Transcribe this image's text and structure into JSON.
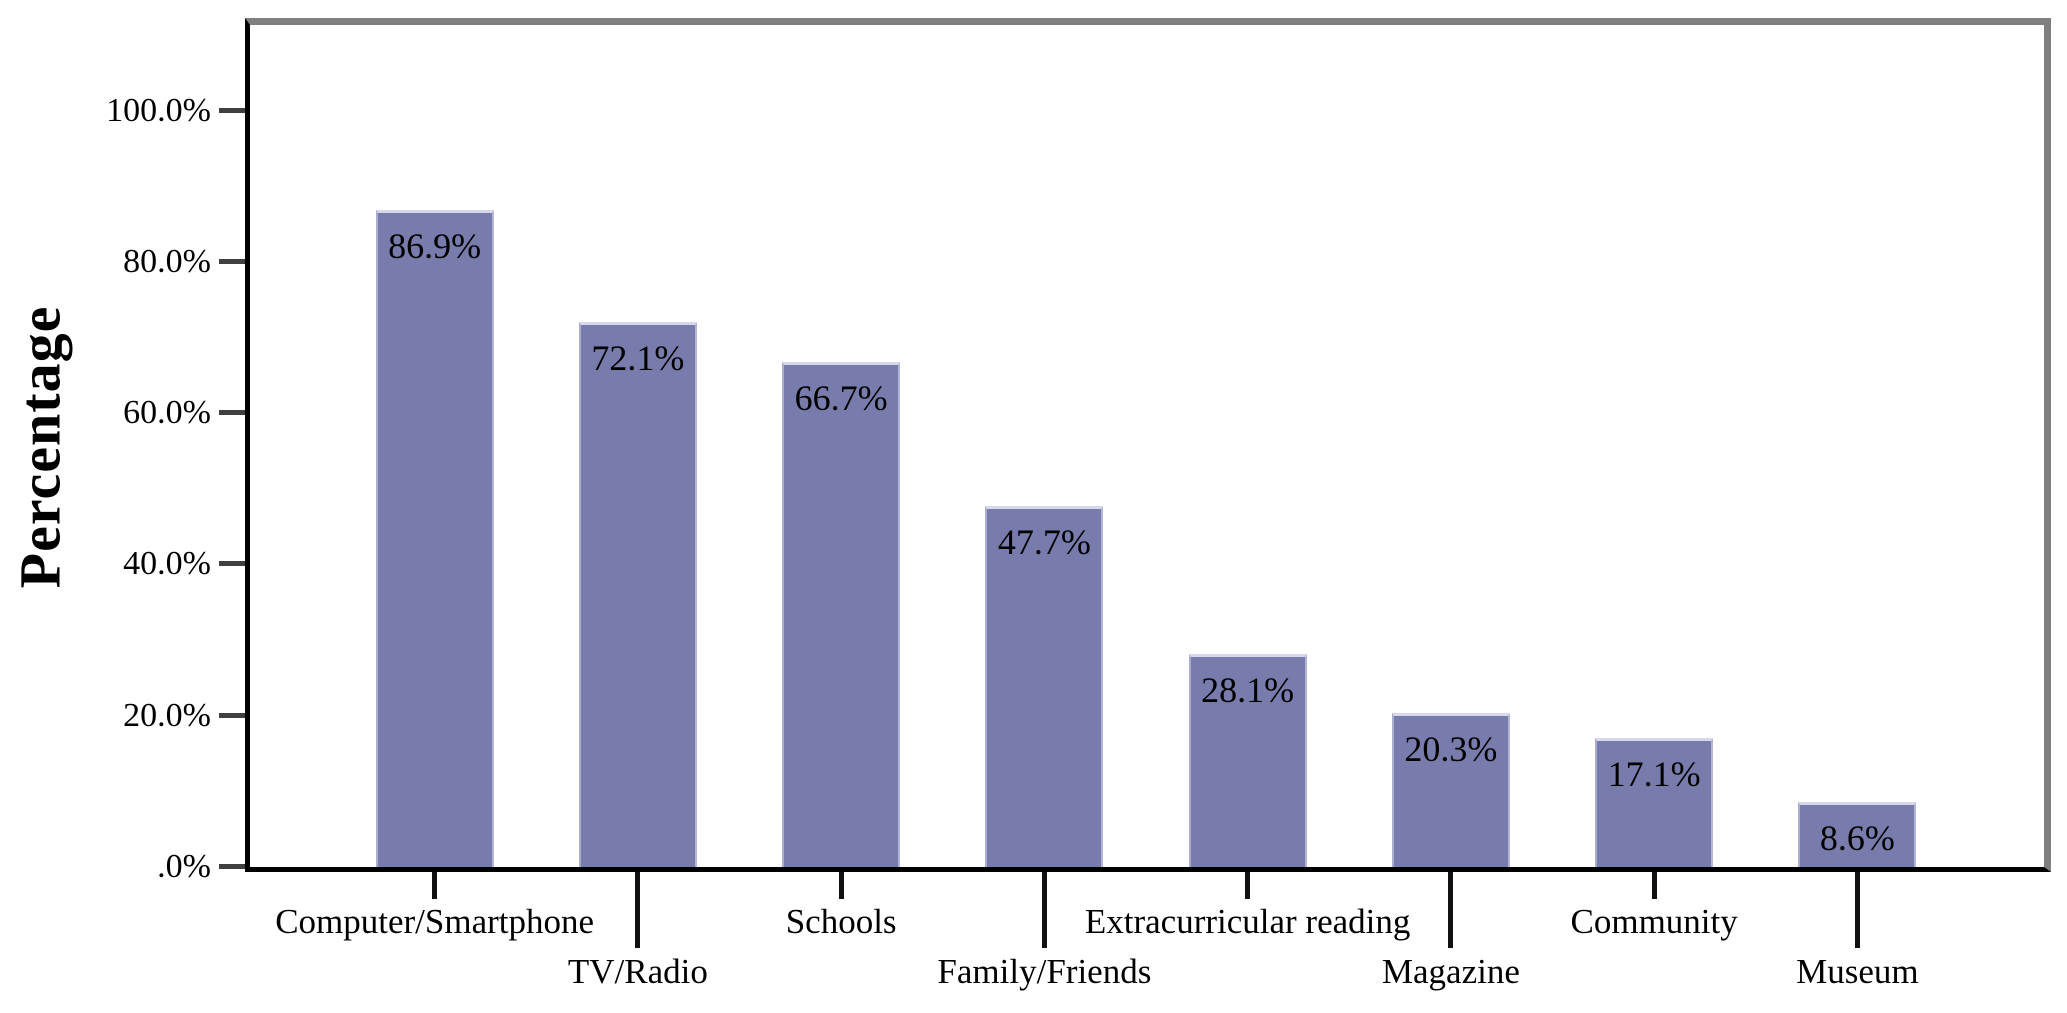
{
  "chart_data": {
    "type": "bar",
    "title": "",
    "xlabel": "",
    "ylabel": "Percentage",
    "categories": [
      "Computer/Smartphone",
      "TV/Radio",
      "Schools",
      "Family/Friends",
      "Extracurricular reading",
      "Magazine",
      "Community",
      "Museum"
    ],
    "values": [
      86.9,
      72.1,
      66.7,
      47.7,
      28.1,
      20.3,
      17.1,
      8.6
    ],
    "bar_labels": [
      "86.9%",
      "72.1%",
      "66.7%",
      "47.7%",
      "28.1%",
      "20.3%",
      "17.1%",
      "8.6%"
    ],
    "y_ticks": [
      {
        "value": 100,
        "label": "100.0%"
      },
      {
        "value": 80,
        "label": "80.0%"
      },
      {
        "value": 60,
        "label": "60.0%"
      },
      {
        "value": 40,
        "label": "40.0%"
      },
      {
        "value": 20,
        "label": "20.0%"
      },
      {
        "value": 0,
        "label": ".0%"
      }
    ],
    "ylim": [
      0,
      111.3
    ],
    "grid": false,
    "legend": "none",
    "label_stagger": "alternate-two-rows",
    "colors": {
      "bar_fill": "#787cac",
      "bar_top_highlight": "#d8d8ea",
      "bar_side_highlight": "#abadd0",
      "frame_gray": "#7f7f7f",
      "axis_black": "#000000",
      "tick_gray": "#3f3f3f",
      "text": "#000000",
      "background": "#ffffff"
    }
  }
}
